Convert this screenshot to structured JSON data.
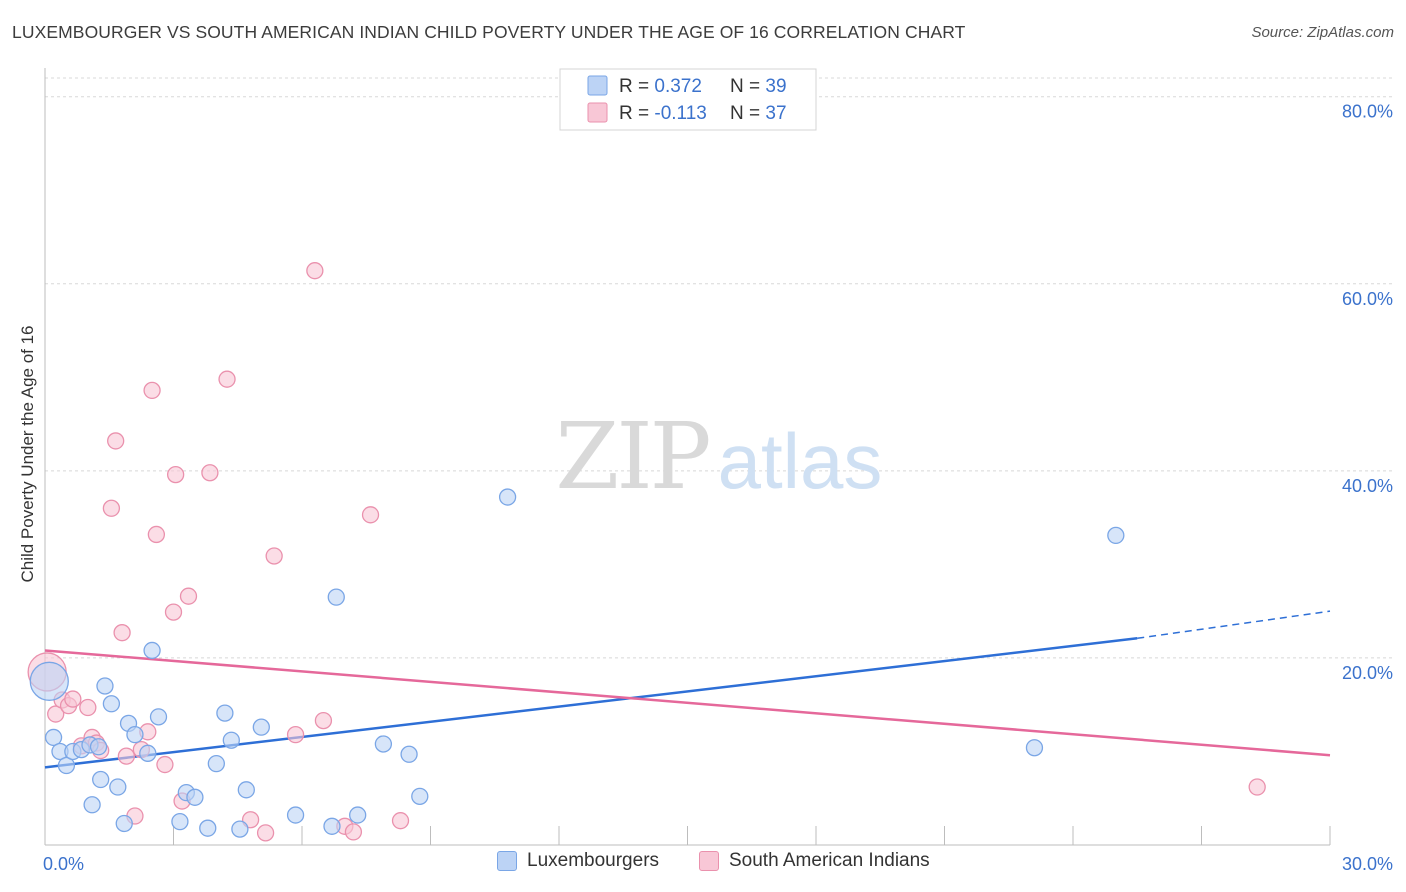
{
  "title": "LUXEMBOURGER VS SOUTH AMERICAN INDIAN CHILD POVERTY UNDER THE AGE OF 16 CORRELATION CHART",
  "source": "Source: ZipAtlas.com",
  "watermark": {
    "zip": "ZIP",
    "atlas": "atlas"
  },
  "colors": {
    "blue_fill": "#bcd3f5",
    "blue_edge": "#7aa6e6",
    "blue_line": "#2e6fd6",
    "pink_fill": "#f8c7d6",
    "pink_edge": "#ea91ad",
    "pink_line": "#e5689a",
    "value_text": "#3b72cc"
  },
  "legend": {
    "rows": [
      {
        "r_label": "R = ",
        "r_value": "0.372",
        "n_label": "N = ",
        "n_value": "39"
      },
      {
        "r_label": "R = ",
        "r_value": "-0.113",
        "n_label": "N = ",
        "n_value": "37"
      }
    ]
  },
  "bottom_legend": {
    "series1": "Luxembourgers",
    "series2": "South American Indians"
  },
  "chart_data": {
    "type": "scatter",
    "title": "LUXEMBOURGER VS SOUTH AMERICAN INDIAN CHILD POVERTY UNDER THE AGE OF 16 CORRELATION CHART",
    "xlabel": "",
    "ylabel": "Child Poverty Under the Age of 16",
    "xlim": [
      0,
      30
    ],
    "ylim": [
      0,
      82
    ],
    "x_tick_labels": [
      {
        "v": 0,
        "label": "0.0%"
      },
      {
        "v": 30,
        "label": "30.0%"
      }
    ],
    "y_tick_labels": [
      {
        "v": 20,
        "label": "20.0%"
      },
      {
        "v": 40,
        "label": "40.0%"
      },
      {
        "v": 60,
        "label": "60.0%"
      },
      {
        "v": 80,
        "label": "80.0%"
      }
    ],
    "x_minor_ticks": [
      3,
      6,
      9,
      12,
      15,
      18,
      21,
      24,
      27,
      30
    ],
    "series": [
      {
        "name": "Luxembourgers",
        "r": 0.372,
        "n": 39,
        "trend": {
          "x0": 0,
          "y0": 8.3,
          "x1": 25.5,
          "y1": 22.1,
          "dash_to_x": 30,
          "dash_to_y": 25.0
        },
        "points": [
          {
            "x": 0.1,
            "y": 17.5,
            "big": true
          },
          {
            "x": 0.2,
            "y": 11.5
          },
          {
            "x": 0.35,
            "y": 10.0
          },
          {
            "x": 0.5,
            "y": 8.5
          },
          {
            "x": 0.65,
            "y": 10.0
          },
          {
            "x": 0.85,
            "y": 10.2
          },
          {
            "x": 1.05,
            "y": 10.7
          },
          {
            "x": 1.1,
            "y": 4.3
          },
          {
            "x": 1.25,
            "y": 10.5
          },
          {
            "x": 1.3,
            "y": 7.0
          },
          {
            "x": 1.4,
            "y": 17.0
          },
          {
            "x": 1.55,
            "y": 15.1
          },
          {
            "x": 1.7,
            "y": 6.2
          },
          {
            "x": 1.85,
            "y": 2.3
          },
          {
            "x": 1.95,
            "y": 13.0
          },
          {
            "x": 2.1,
            "y": 11.8
          },
          {
            "x": 2.4,
            "y": 9.8
          },
          {
            "x": 2.5,
            "y": 20.8
          },
          {
            "x": 2.65,
            "y": 13.7
          },
          {
            "x": 3.15,
            "y": 2.5
          },
          {
            "x": 3.3,
            "y": 5.6
          },
          {
            "x": 3.5,
            "y": 5.1
          },
          {
            "x": 3.8,
            "y": 1.8
          },
          {
            "x": 4.0,
            "y": 8.7
          },
          {
            "x": 4.2,
            "y": 14.1
          },
          {
            "x": 4.35,
            "y": 11.2
          },
          {
            "x": 4.55,
            "y": 1.7
          },
          {
            "x": 4.7,
            "y": 5.9
          },
          {
            "x": 5.05,
            "y": 12.6
          },
          {
            "x": 5.85,
            "y": 3.2
          },
          {
            "x": 6.7,
            "y": 2.0
          },
          {
            "x": 6.8,
            "y": 26.5
          },
          {
            "x": 7.3,
            "y": 3.2
          },
          {
            "x": 7.9,
            "y": 10.8
          },
          {
            "x": 8.5,
            "y": 9.7
          },
          {
            "x": 8.75,
            "y": 5.2
          },
          {
            "x": 10.8,
            "y": 37.2
          },
          {
            "x": 23.1,
            "y": 10.4
          },
          {
            "x": 25.0,
            "y": 33.1
          }
        ]
      },
      {
        "name": "South American Indians",
        "r": -0.113,
        "n": 37,
        "trend": {
          "x0": 0,
          "y0": 20.8,
          "x1": 30,
          "y1": 9.6
        },
        "points": [
          {
            "x": 0.05,
            "y": 18.5,
            "big": true
          },
          {
            "x": 0.25,
            "y": 14.0
          },
          {
            "x": 0.4,
            "y": 15.5
          },
          {
            "x": 0.55,
            "y": 14.9
          },
          {
            "x": 0.65,
            "y": 15.6
          },
          {
            "x": 0.85,
            "y": 10.6
          },
          {
            "x": 1.0,
            "y": 14.7
          },
          {
            "x": 1.1,
            "y": 11.5
          },
          {
            "x": 1.2,
            "y": 10.9
          },
          {
            "x": 1.3,
            "y": 10.1
          },
          {
            "x": 1.55,
            "y": 36.0
          },
          {
            "x": 1.65,
            "y": 43.2
          },
          {
            "x": 1.8,
            "y": 22.7
          },
          {
            "x": 1.9,
            "y": 9.5
          },
          {
            "x": 2.1,
            "y": 3.1
          },
          {
            "x": 2.25,
            "y": 10.2
          },
          {
            "x": 2.4,
            "y": 12.1
          },
          {
            "x": 2.5,
            "y": 48.6
          },
          {
            "x": 2.6,
            "y": 33.2
          },
          {
            "x": 2.8,
            "y": 8.6
          },
          {
            "x": 3.0,
            "y": 24.9
          },
          {
            "x": 3.05,
            "y": 39.6
          },
          {
            "x": 3.2,
            "y": 4.7
          },
          {
            "x": 3.35,
            "y": 26.6
          },
          {
            "x": 3.85,
            "y": 39.8
          },
          {
            "x": 4.25,
            "y": 49.8
          },
          {
            "x": 4.8,
            "y": 2.7
          },
          {
            "x": 5.15,
            "y": 1.3
          },
          {
            "x": 5.35,
            "y": 30.9
          },
          {
            "x": 5.85,
            "y": 11.8
          },
          {
            "x": 6.3,
            "y": 61.4
          },
          {
            "x": 6.5,
            "y": 13.3
          },
          {
            "x": 7.0,
            "y": 2.0
          },
          {
            "x": 7.2,
            "y": 1.4
          },
          {
            "x": 7.6,
            "y": 35.3
          },
          {
            "x": 8.3,
            "y": 2.6
          },
          {
            "x": 28.3,
            "y": 6.2
          }
        ]
      }
    ]
  }
}
